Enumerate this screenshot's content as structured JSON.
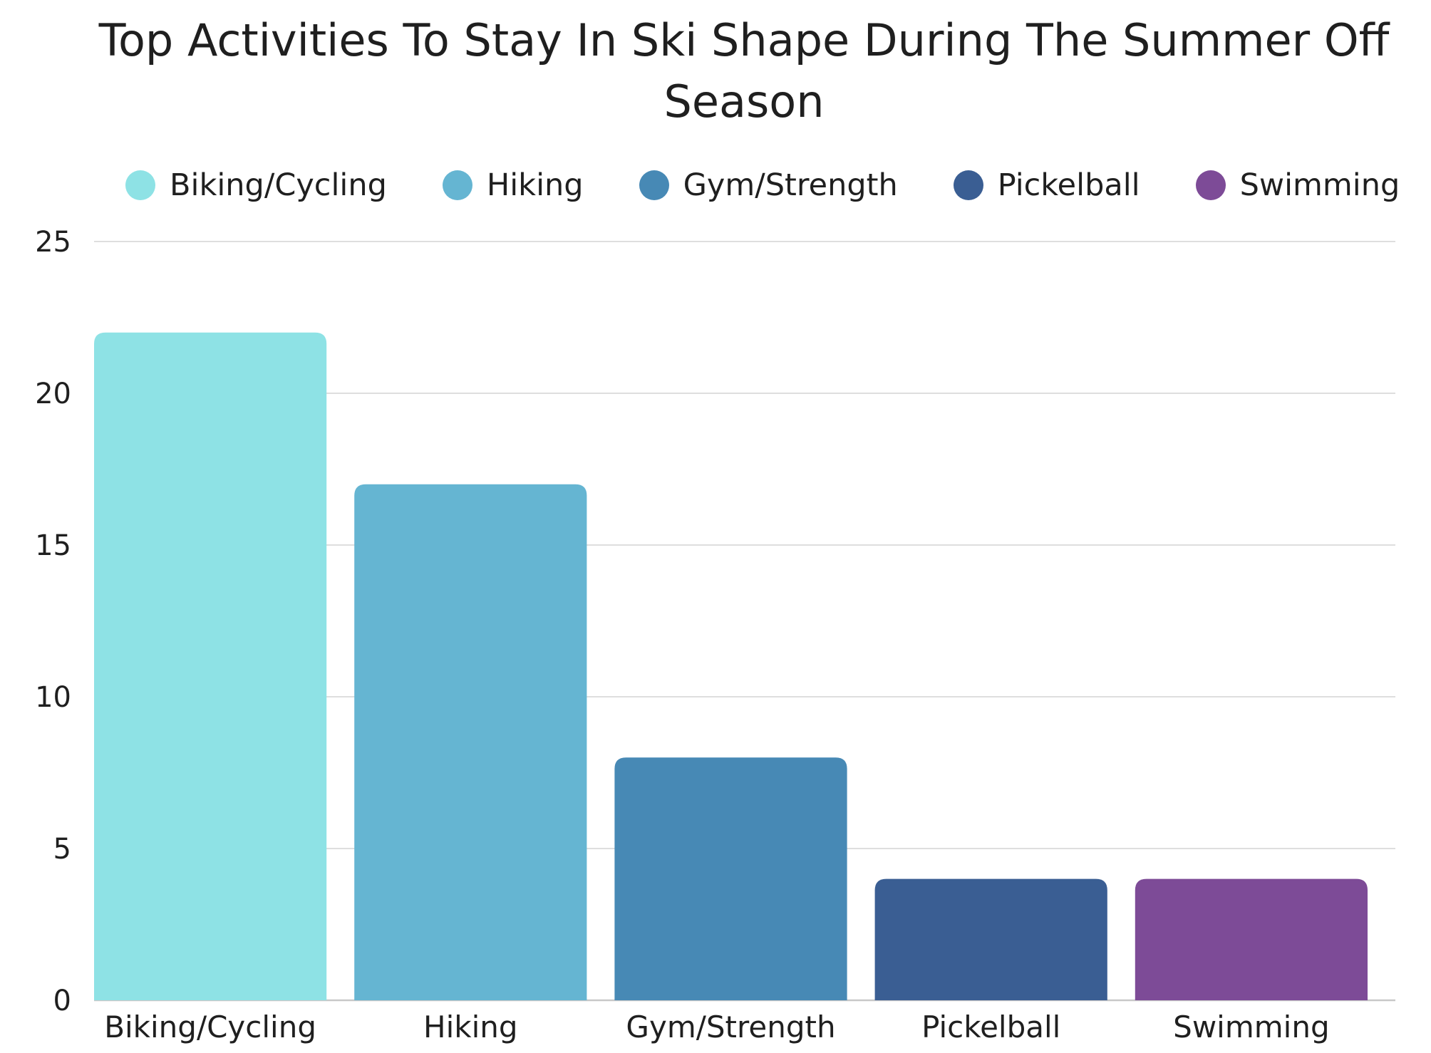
{
  "chart_data": {
    "type": "bar",
    "title": "Top Activities To Stay In Ski Shape During The Summer Off Season",
    "categories": [
      "Biking/Cycling",
      "Hiking",
      "Gym/Strength",
      "Pickelball",
      "Swimming"
    ],
    "values": [
      22,
      17,
      8,
      4,
      4
    ],
    "colors": [
      "#8EE2E5",
      "#65B5D2",
      "#4789B5",
      "#3A5E93",
      "#7D4B97"
    ],
    "legend": [
      "Biking/Cycling",
      "Hiking",
      "Gym/Strength",
      "Pickelball",
      "Swimming"
    ],
    "legend_position": "top",
    "xlabel": "",
    "ylabel": "",
    "ylim": [
      0,
      25
    ],
    "yticks": [
      0,
      5,
      10,
      15,
      20,
      25
    ],
    "grid": true
  }
}
